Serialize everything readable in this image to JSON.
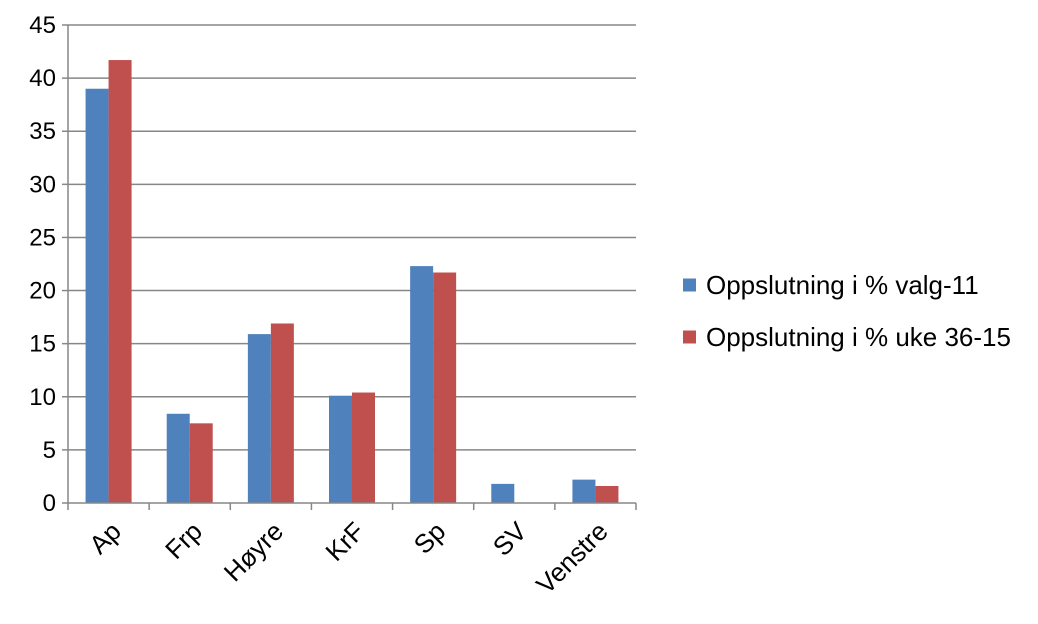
{
  "chart_data": {
    "type": "bar",
    "categories": [
      "Ap",
      "Frp",
      "Høyre",
      "KrF",
      "Sp",
      "SV",
      "Venstre"
    ],
    "series": [
      {
        "name": "Oppslutning i % valg-11",
        "color": "#4f81bd",
        "values": [
          39.0,
          8.4,
          15.9,
          10.1,
          22.3,
          1.8,
          2.2
        ]
      },
      {
        "name": "Oppslutning i % uke 36-15",
        "color": "#c0504d",
        "values": [
          41.7,
          7.5,
          16.9,
          10.4,
          21.7,
          0,
          1.6
        ]
      }
    ],
    "yticks": [
      0,
      5,
      10,
      15,
      20,
      25,
      30,
      35,
      40,
      45
    ],
    "ylim": [
      0,
      45
    ],
    "grid": true,
    "legend_position": "right"
  }
}
